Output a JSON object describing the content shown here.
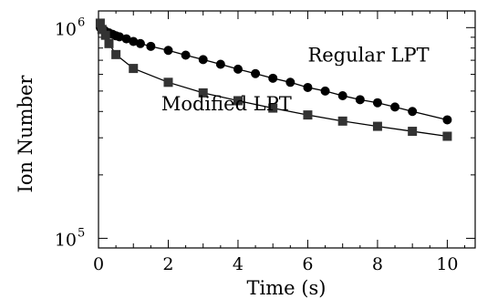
{
  "chart_data": {
    "type": "scatter",
    "xlabel": "Time (s)",
    "ylabel": "Ion Number",
    "xlim": [
      0,
      10.8
    ],
    "ylim": [
      90000,
      1200000
    ],
    "yscale": "log",
    "x_ticks": [
      0,
      2,
      4,
      6,
      8,
      10
    ],
    "x_tick_labels": [
      "0",
      "2",
      "4",
      "6",
      "8",
      "10"
    ],
    "y_ticks": [
      100000,
      1000000
    ],
    "y_tick_labels": [
      {
        "base": "10",
        "exp": "5"
      },
      {
        "base": "10",
        "exp": "6"
      }
    ],
    "grid": false,
    "series": [
      {
        "name": "Regular LPT",
        "marker": "circle",
        "color": "#000000",
        "x": [
          0.05,
          0.1,
          0.15,
          0.2,
          0.3,
          0.4,
          0.5,
          0.6,
          0.8,
          1.0,
          1.2,
          1.5,
          2.0,
          2.5,
          3.0,
          3.5,
          4.0,
          4.5,
          5.0,
          5.5,
          6.0,
          6.5,
          7.0,
          7.5,
          8.0,
          8.5,
          9.0,
          10.0
        ],
        "y": [
          1000000,
          990000,
          975000,
          960000,
          945000,
          930000,
          915000,
          905000,
          885000,
          860000,
          840000,
          815000,
          780000,
          740000,
          705000,
          670000,
          635000,
          605000,
          575000,
          550000,
          520000,
          500000,
          475000,
          455000,
          440000,
          420000,
          400000,
          365000
        ]
      },
      {
        "name": "Modified LPT",
        "marker": "square",
        "color": "#333333",
        "x": [
          0.05,
          0.1,
          0.2,
          0.3,
          0.5,
          1.0,
          2.0,
          3.0,
          4.0,
          5.0,
          6.0,
          7.0,
          8.0,
          9.0,
          10.0
        ],
        "y": [
          1050000,
          980000,
          920000,
          840000,
          745000,
          640000,
          550000,
          490000,
          450000,
          415000,
          385000,
          360000,
          340000,
          322000,
          305000
        ]
      }
    ],
    "annotations": [
      {
        "text": "Regular LPT",
        "x": 6.0,
        "y": 690000
      },
      {
        "text": "Modified LPT",
        "x": 1.8,
        "y": 405000
      }
    ]
  }
}
